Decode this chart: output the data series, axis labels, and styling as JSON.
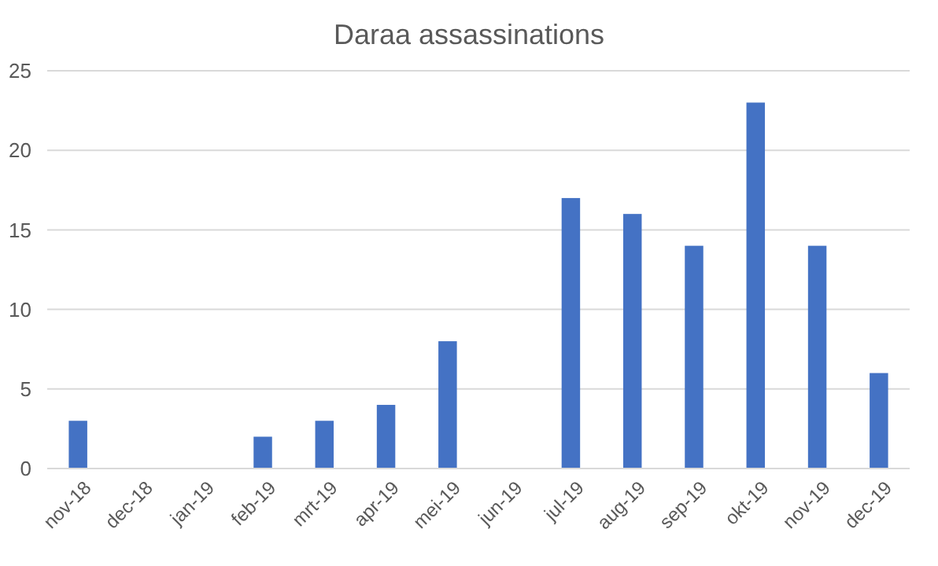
{
  "chart_data": {
    "type": "bar",
    "title": "Daraa assassinations",
    "categories": [
      "nov-18",
      "dec-18",
      "jan-19",
      "feb-19",
      "mrt-19",
      "apr-19",
      "mei-19",
      "jun-19",
      "jul-19",
      "aug-19",
      "sep-19",
      "okt-19",
      "nov-19",
      "dec-19"
    ],
    "values": [
      3,
      0,
      0,
      2,
      3,
      4,
      8,
      0,
      17,
      16,
      14,
      23,
      14,
      6
    ],
    "color": "#4472c4",
    "ylim": [
      0,
      25
    ],
    "yticks": [
      0,
      5,
      10,
      15,
      20,
      25
    ],
    "grid": "y"
  }
}
